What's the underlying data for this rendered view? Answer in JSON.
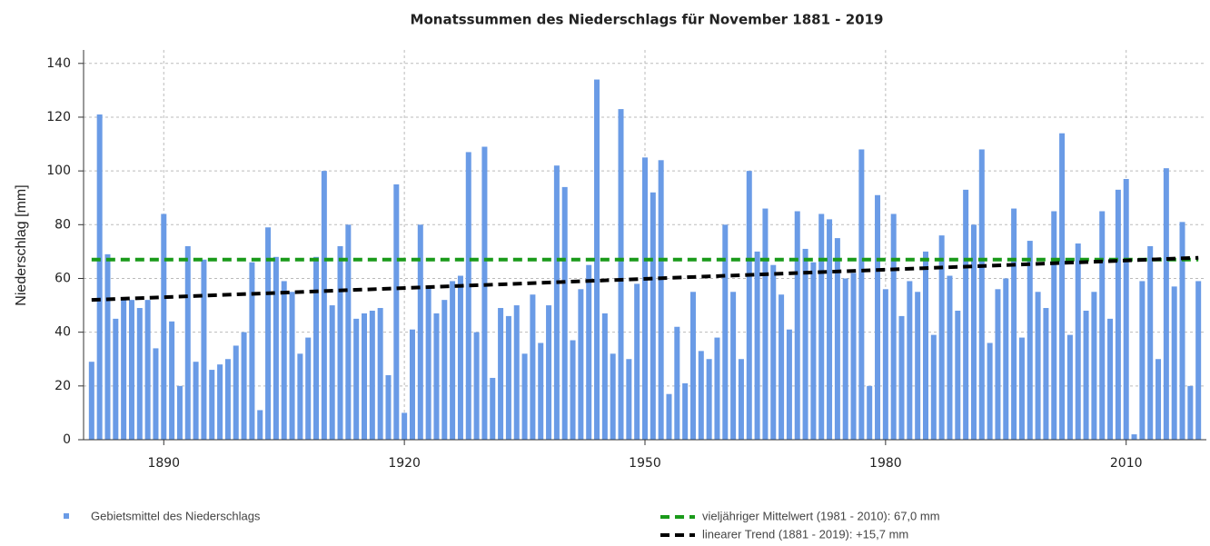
{
  "chart_data": {
    "type": "bar",
    "title": "Monatssummen des Niederschlags für November 1881 - 2019",
    "y_label": "Niederschlag [mm]",
    "x": [
      1881,
      1882,
      1883,
      1884,
      1885,
      1886,
      1887,
      1888,
      1889,
      1890,
      1891,
      1892,
      1893,
      1894,
      1895,
      1896,
      1897,
      1898,
      1899,
      1900,
      1901,
      1902,
      1903,
      1904,
      1905,
      1906,
      1907,
      1908,
      1909,
      1910,
      1911,
      1912,
      1913,
      1914,
      1915,
      1916,
      1917,
      1918,
      1919,
      1920,
      1921,
      1922,
      1923,
      1924,
      1925,
      1926,
      1927,
      1928,
      1929,
      1930,
      1931,
      1932,
      1933,
      1934,
      1935,
      1936,
      1937,
      1938,
      1939,
      1940,
      1941,
      1942,
      1943,
      1944,
      1945,
      1946,
      1947,
      1948,
      1949,
      1950,
      1951,
      1952,
      1953,
      1954,
      1955,
      1956,
      1957,
      1958,
      1959,
      1960,
      1961,
      1962,
      1963,
      1964,
      1965,
      1966,
      1967,
      1968,
      1969,
      1970,
      1971,
      1972,
      1973,
      1974,
      1975,
      1976,
      1977,
      1978,
      1979,
      1980,
      1981,
      1982,
      1983,
      1984,
      1985,
      1986,
      1987,
      1988,
      1989,
      1990,
      1991,
      1992,
      1993,
      1994,
      1995,
      1996,
      1997,
      1998,
      1999,
      2000,
      2001,
      2002,
      2003,
      2004,
      2005,
      2006,
      2007,
      2008,
      2009,
      2010,
      2011,
      2012,
      2013,
      2014,
      2015,
      2016,
      2017,
      2018,
      2019
    ],
    "series": [
      {
        "name": "Gebietsmittel des Niederschlags",
        "color": "#6a9be6",
        "values": [
          29,
          121,
          69,
          45,
          52,
          52,
          49,
          52,
          34,
          84,
          44,
          20,
          72,
          29,
          67,
          26,
          28,
          30,
          35,
          40,
          66,
          11,
          79,
          68,
          59,
          55,
          32,
          38,
          68,
          100,
          50,
          72,
          80,
          45,
          47,
          48,
          49,
          24,
          95,
          10,
          41,
          80,
          57,
          47,
          52,
          59,
          61,
          107,
          40,
          109,
          23,
          49,
          46,
          50,
          32,
          54,
          36,
          50,
          102,
          94,
          37,
          56,
          65,
          134,
          47,
          32,
          123,
          30,
          58,
          105,
          92,
          104,
          17,
          42,
          21,
          55,
          33,
          30,
          38,
          80,
          55,
          30,
          100,
          70,
          86,
          65,
          54,
          41,
          85,
          71,
          66,
          84,
          82,
          75,
          60,
          62,
          108,
          20,
          91,
          56,
          84,
          46,
          59,
          55,
          70,
          39,
          76,
          61,
          48,
          93,
          80,
          108,
          36,
          56,
          60,
          86,
          38,
          74,
          55,
          49,
          85,
          114,
          39,
          73,
          48,
          55,
          85,
          45,
          93,
          97,
          2,
          59,
          72,
          30,
          101,
          57,
          81,
          20,
          59
        ]
      }
    ],
    "reference_lines": [
      {
        "name": "vieljähriger Mittelwert (1981 - 2010): 67,0 mm",
        "color": "#1a9a1a",
        "x": [
          1881,
          2019
        ],
        "values": [
          67,
          67
        ]
      },
      {
        "name": "linearer Trend (1881 - 2019): +15,7 mm",
        "color": "#000000",
        "x": [
          1881,
          2019
        ],
        "values": [
          52,
          67.7
        ]
      }
    ],
    "xlim": [
      1880,
      2020
    ],
    "xticks": [
      1890,
      1920,
      1950,
      1980,
      2010
    ],
    "ylim": [
      0,
      145
    ],
    "yticks": [
      0,
      20,
      40,
      60,
      80,
      100,
      120,
      140
    ],
    "grid": true
  }
}
